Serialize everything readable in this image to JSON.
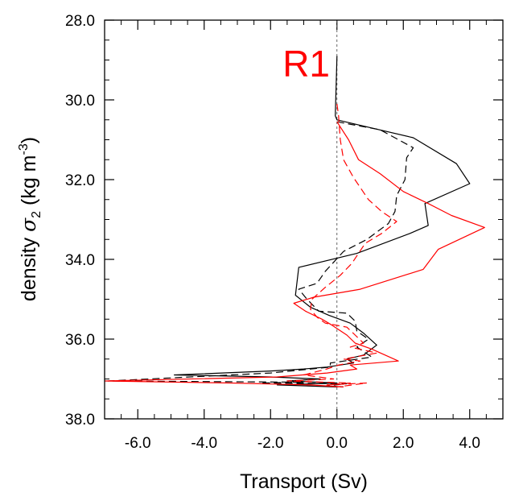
{
  "chart_data": {
    "type": "line",
    "panel_label": "R1",
    "panel_label_color": "#ff0000",
    "xlabel": "Transport (Sv)",
    "ylabel_prefix": "density ",
    "ylabel_symbol": "σ",
    "ylabel_subscript": "2",
    "ylabel_units": " (kg m",
    "ylabel_superscript": "-3",
    "ylabel_close": ")",
    "xlim": [
      -7.0,
      5.0
    ],
    "ylim": [
      28.0,
      38.0
    ],
    "y_inverted": true,
    "x_ticks": [
      -6.0,
      -4.0,
      -2.0,
      0.0,
      2.0,
      4.0
    ],
    "x_tick_labels": [
      "-6.0",
      "-4.0",
      "-2.0",
      "0.0",
      "2.0",
      "4.0"
    ],
    "y_ticks": [
      28.0,
      30.0,
      32.0,
      34.0,
      36.0,
      38.0
    ],
    "y_tick_labels": [
      "28.0",
      "30.0",
      "32.0",
      "34.0",
      "36.0",
      "38.0"
    ],
    "reference_line_x": 0.0,
    "grid": false,
    "series": [
      {
        "color": "#000000",
        "dash": "solid",
        "points": [
          [
            0.0,
            28.9
          ],
          [
            -0.05,
            30.4
          ],
          [
            0.0,
            30.5
          ],
          [
            2.3,
            30.95
          ],
          [
            3.6,
            31.6
          ],
          [
            4.0,
            32.1
          ],
          [
            2.65,
            32.6
          ],
          [
            2.75,
            33.15
          ],
          [
            2.2,
            33.35
          ],
          [
            0.6,
            33.85
          ],
          [
            -1.15,
            34.2
          ],
          [
            -1.25,
            34.9
          ],
          [
            -0.8,
            35.2
          ],
          [
            -0.25,
            35.4
          ],
          [
            0.4,
            35.6
          ],
          [
            0.8,
            35.85
          ],
          [
            1.2,
            36.15
          ],
          [
            0.8,
            36.4
          ],
          [
            0.3,
            36.5
          ],
          [
            0.5,
            36.6
          ],
          [
            -0.3,
            36.7
          ],
          [
            -1.0,
            36.75
          ],
          [
            -2.0,
            36.8
          ],
          [
            -4.9,
            36.9
          ],
          [
            -2.0,
            36.95
          ],
          [
            -0.5,
            37.0
          ],
          [
            -1.5,
            37.05
          ],
          [
            0.0,
            37.1
          ],
          [
            -1.8,
            37.15
          ],
          [
            0.0,
            37.2
          ]
        ]
      },
      {
        "color": "#000000",
        "dash": "dashed",
        "points": [
          [
            0.0,
            30.55
          ],
          [
            1.3,
            30.75
          ],
          [
            2.3,
            31.2
          ],
          [
            2.1,
            31.45
          ],
          [
            2.05,
            32.0
          ],
          [
            1.8,
            32.4
          ],
          [
            1.75,
            32.8
          ],
          [
            1.55,
            33.1
          ],
          [
            0.9,
            33.5
          ],
          [
            0.2,
            33.8
          ],
          [
            -0.35,
            34.3
          ],
          [
            -0.6,
            34.6
          ],
          [
            -1.15,
            34.75
          ],
          [
            -0.9,
            35.0
          ],
          [
            -0.55,
            35.3
          ],
          [
            0.3,
            35.35
          ],
          [
            0.55,
            35.55
          ],
          [
            0.6,
            35.8
          ],
          [
            0.95,
            36.0
          ],
          [
            0.6,
            36.2
          ],
          [
            1.05,
            36.45
          ],
          [
            -0.2,
            36.6
          ],
          [
            -0.2,
            36.7
          ],
          [
            -2.0,
            36.85
          ],
          [
            -6.9,
            37.05
          ],
          [
            -1.0,
            37.08
          ],
          [
            -2.3,
            37.1
          ],
          [
            0.3,
            37.12
          ],
          [
            -0.4,
            37.18
          ],
          [
            0.2,
            37.2
          ]
        ]
      },
      {
        "color": "#ff0000",
        "dash": "solid",
        "points": [
          [
            0.0,
            30.55
          ],
          [
            0.35,
            31.0
          ],
          [
            0.65,
            31.5
          ],
          [
            1.3,
            31.85
          ],
          [
            2.0,
            32.3
          ],
          [
            2.75,
            32.6
          ],
          [
            3.45,
            32.9
          ],
          [
            4.45,
            33.2
          ],
          [
            3.05,
            33.75
          ],
          [
            2.6,
            34.25
          ],
          [
            0.7,
            34.75
          ],
          [
            -0.7,
            34.95
          ],
          [
            -1.3,
            35.1
          ],
          [
            -0.95,
            35.3
          ],
          [
            -0.45,
            35.5
          ],
          [
            -0.15,
            35.65
          ],
          [
            0.3,
            35.9
          ],
          [
            0.55,
            36.1
          ],
          [
            1.05,
            36.25
          ],
          [
            1.85,
            36.55
          ],
          [
            0.4,
            36.65
          ],
          [
            0.6,
            36.75
          ],
          [
            -0.3,
            36.85
          ],
          [
            -1.8,
            36.95
          ],
          [
            -7.0,
            37.05
          ],
          [
            -3.2,
            37.1
          ],
          [
            -0.8,
            37.15
          ],
          [
            0.2,
            37.2
          ]
        ]
      },
      {
        "color": "#ff0000",
        "dash": "dashed",
        "points": [
          [
            0.0,
            30.1
          ],
          [
            0.05,
            30.4
          ],
          [
            0.1,
            31.0
          ],
          [
            0.2,
            31.5
          ],
          [
            0.5,
            31.95
          ],
          [
            0.95,
            32.5
          ],
          [
            1.35,
            32.8
          ],
          [
            1.8,
            33.05
          ],
          [
            1.35,
            33.35
          ],
          [
            0.85,
            33.6
          ],
          [
            0.45,
            34.1
          ],
          [
            0.1,
            34.4
          ],
          [
            -0.35,
            34.7
          ],
          [
            -0.75,
            35.0
          ],
          [
            -0.8,
            35.25
          ],
          [
            -0.6,
            35.45
          ],
          [
            -0.35,
            35.6
          ],
          [
            0.3,
            35.7
          ],
          [
            0.55,
            35.9
          ],
          [
            0.8,
            36.1
          ],
          [
            0.4,
            36.2
          ],
          [
            1.2,
            36.35
          ],
          [
            0.2,
            36.5
          ],
          [
            0.7,
            36.55
          ],
          [
            0.05,
            36.65
          ],
          [
            -0.3,
            36.75
          ],
          [
            -1.0,
            36.9
          ],
          [
            -0.1,
            37.0
          ],
          [
            -1.5,
            37.05
          ],
          [
            0.4,
            37.1
          ],
          [
            -0.3,
            37.15
          ],
          [
            0.9,
            37.1
          ],
          [
            0.0,
            37.2
          ]
        ]
      }
    ]
  }
}
